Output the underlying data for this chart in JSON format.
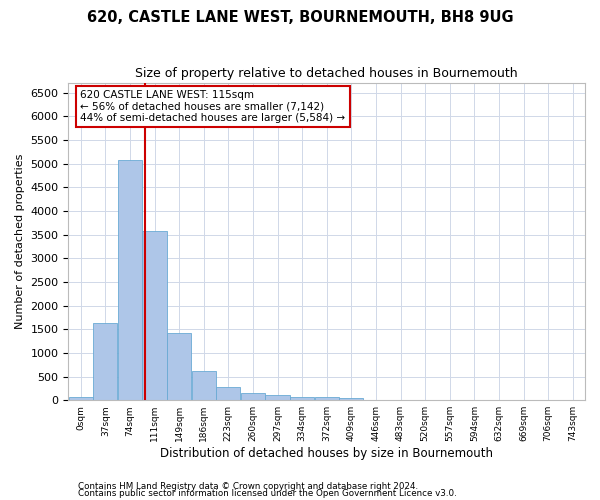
{
  "title": "620, CASTLE LANE WEST, BOURNEMOUTH, BH8 9UG",
  "subtitle": "Size of property relative to detached houses in Bournemouth",
  "xlabel": "Distribution of detached houses by size in Bournemouth",
  "ylabel": "Number of detached properties",
  "bin_labels": [
    "0sqm",
    "37sqm",
    "74sqm",
    "111sqm",
    "149sqm",
    "186sqm",
    "223sqm",
    "260sqm",
    "297sqm",
    "334sqm",
    "372sqm",
    "409sqm",
    "446sqm",
    "483sqm",
    "520sqm",
    "557sqm",
    "594sqm",
    "632sqm",
    "669sqm",
    "706sqm",
    "743sqm"
  ],
  "bar_values": [
    75,
    1630,
    5080,
    3580,
    1420,
    625,
    285,
    155,
    110,
    75,
    60,
    45,
    0,
    0,
    0,
    0,
    0,
    0,
    0,
    0,
    0
  ],
  "bar_color": "#aec6e8",
  "bar_edgecolor": "#6aaad4",
  "grid_color": "#d0d8e8",
  "vline_x": 115,
  "vline_color": "#cc0000",
  "ann_line1": "620 CASTLE LANE WEST: 115sqm",
  "ann_line2": "← 56% of detached houses are smaller (7,142)",
  "ann_line3": "44% of semi-detached houses are larger (5,584) →",
  "annotation_box_edgecolor": "#cc0000",
  "ylim_max": 6700,
  "yticks": [
    0,
    500,
    1000,
    1500,
    2000,
    2500,
    3000,
    3500,
    4000,
    4500,
    5000,
    5500,
    6000,
    6500
  ],
  "footnote1": "Contains HM Land Registry data © Crown copyright and database right 2024.",
  "footnote2": "Contains public sector information licensed under the Open Government Licence v3.0.",
  "bin_width": 37,
  "n_bins": 21
}
